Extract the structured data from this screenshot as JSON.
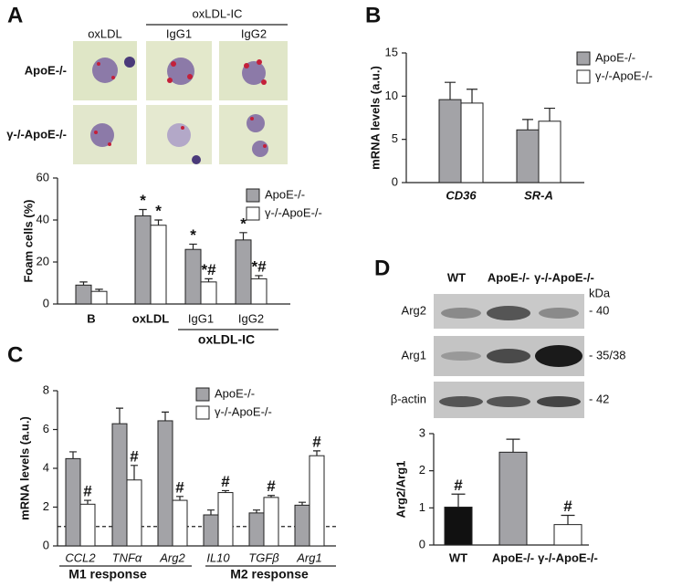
{
  "micrograph": {
    "columns": [
      "oxLDL",
      "IgG1",
      "IgG2"
    ],
    "column_group": "oxLDL-IC",
    "rows": [
      "ApoE-/-",
      "γ-/-ApoE-/-"
    ]
  },
  "blot": {
    "lanes": [
      "WT",
      "ApoE-/-",
      "γ-/-ApoE-/-"
    ],
    "unit": "kDa",
    "rows": [
      "Arg2",
      "Arg1",
      "β-actin"
    ],
    "sizes": [
      "- 40",
      "- 35/38",
      "- 42"
    ]
  },
  "chart_data": [
    {
      "type": "bar",
      "panel_label": "A",
      "ylabel": "Foam cells (%)",
      "categories": [
        "B",
        "oxLDL",
        "IgG1",
        "IgG2"
      ],
      "group_labels": [
        "oxLDL-IC"
      ],
      "series": [
        {
          "name": "ApoE-/-",
          "color": "#a3a3a7",
          "values": [
            9,
            42,
            26,
            30.5
          ],
          "errors": [
            1.5,
            3,
            2.5,
            3.5
          ],
          "annotations": [
            null,
            "*",
            "*",
            "*"
          ]
        },
        {
          "name": "γ-/-ApoE-/-",
          "color": "#ffffff",
          "values": [
            6,
            37.5,
            10.5,
            12
          ],
          "errors": [
            1,
            2.5,
            1.5,
            1.5
          ],
          "annotations": [
            null,
            "*",
            "*#",
            "*#"
          ]
        }
      ],
      "ylim": [
        0,
        60
      ],
      "yticks": [
        0,
        20,
        40,
        60
      ]
    },
    {
      "type": "bar",
      "panel_label": "B",
      "ylabel": "mRNA levels (a.u.)",
      "categories": [
        "CD36",
        "SR-A"
      ],
      "series": [
        {
          "name": "ApoE-/-",
          "color": "#a3a3a7",
          "values": [
            9.6,
            6.1
          ],
          "errors": [
            2,
            1.2
          ]
        },
        {
          "name": "γ-/-ApoE-/-",
          "color": "#ffffff",
          "values": [
            9.2,
            7.1
          ],
          "errors": [
            1.6,
            1.5
          ]
        }
      ],
      "ylim": [
        0,
        15
      ],
      "yticks": [
        0,
        5,
        10,
        15
      ]
    },
    {
      "type": "bar",
      "panel_label": "C",
      "ylabel": "mRNA levels (a.u.)",
      "categories": [
        "CCL2",
        "TNFα",
        "Arg2",
        "IL10",
        "TGFβ",
        "Arg1"
      ],
      "group_labels": [
        "M1 response",
        "M2 response"
      ],
      "series": [
        {
          "name": "ApoE-/-",
          "color": "#a3a3a7",
          "values": [
            4.5,
            6.3,
            6.45,
            1.6,
            1.7,
            2.1
          ],
          "errors": [
            0.35,
            0.8,
            0.45,
            0.25,
            0.15,
            0.15
          ]
        },
        {
          "name": "γ-/-ApoE-/-",
          "color": "#ffffff",
          "values": [
            2.15,
            3.4,
            2.35,
            2.75,
            2.5,
            4.65
          ],
          "errors": [
            0.2,
            0.75,
            0.2,
            0.1,
            0.1,
            0.25
          ],
          "annotations": [
            "#",
            "#",
            "#",
            "#",
            "#",
            "#"
          ]
        }
      ],
      "ylim": [
        0,
        8
      ],
      "yticks": [
        0,
        2,
        4,
        6,
        8
      ],
      "reference_line": 1
    },
    {
      "type": "bar",
      "panel_label": "D",
      "ylabel": "Arg2/Arg1",
      "categories": [
        "WT",
        "ApoE-/-",
        "γ-/-ApoE-/-"
      ],
      "series": [
        {
          "colors": [
            "#111111",
            "#a3a3a7",
            "#ffffff"
          ],
          "values": [
            1.02,
            2.5,
            0.55
          ],
          "errors": [
            0.35,
            0.35,
            0.25
          ],
          "annotations": [
            "#",
            null,
            "#"
          ]
        }
      ],
      "ylim": [
        0,
        3
      ],
      "yticks": [
        0,
        1,
        2,
        3
      ]
    }
  ]
}
